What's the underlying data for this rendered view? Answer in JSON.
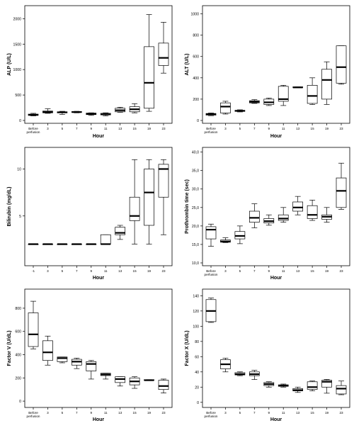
{
  "chart_data": [
    {
      "type": "box",
      "ylabel": "ALP (U/L)",
      "xlabel": "Hour",
      "ylim": [
        0,
        2200
      ],
      "yticks": [
        0,
        500,
        1000,
        1500,
        2000
      ],
      "categories": [
        [
          "Before",
          "perfusion"
        ],
        [
          "3"
        ],
        [
          "5"
        ],
        [
          "7"
        ],
        [
          "9"
        ],
        [
          "11"
        ],
        [
          "13"
        ],
        [
          "15"
        ],
        [
          "19"
        ],
        [
          "23"
        ]
      ],
      "boxes": [
        {
          "min": 90,
          "q1": 100,
          "median": 110,
          "q3": 125,
          "max": 140
        },
        {
          "min": 140,
          "q1": 150,
          "median": 165,
          "q3": 185,
          "max": 230
        },
        {
          "min": 120,
          "q1": 150,
          "median": 160,
          "q3": 170,
          "max": 180
        },
        {
          "min": 150,
          "q1": 160,
          "median": 165,
          "q3": 175,
          "max": 180
        },
        {
          "min": 100,
          "q1": 115,
          "median": 130,
          "q3": 145,
          "max": 150
        },
        {
          "min": 90,
          "q1": 110,
          "median": 120,
          "q3": 140,
          "max": 150
        },
        {
          "min": 160,
          "q1": 170,
          "median": 200,
          "q3": 240,
          "max": 260
        },
        {
          "min": 150,
          "q1": 170,
          "median": 220,
          "q3": 270,
          "max": 330
        },
        {
          "min": 180,
          "q1": 240,
          "median": 740,
          "q3": 1450,
          "max": 2080
        },
        {
          "min": 930,
          "q1": 1080,
          "median": 1230,
          "q3": 1520,
          "max": 1930
        }
      ]
    },
    {
      "type": "box",
      "ylabel": "ALT (U/L)",
      "xlabel": "Hour",
      "ylim": [
        0,
        1050
      ],
      "yticks": [
        0,
        200,
        400,
        600,
        800,
        1000
      ],
      "categories": [
        [
          "Before",
          "perfusion"
        ],
        [
          "3"
        ],
        [
          "5"
        ],
        [
          "7"
        ],
        [
          "9"
        ],
        [
          "11"
        ],
        [
          "13"
        ],
        [
          "15"
        ],
        [
          "19"
        ],
        [
          "23"
        ]
      ],
      "boxes": [
        {
          "min": 45,
          "q1": 50,
          "median": 60,
          "q3": 65,
          "max": 70
        },
        {
          "min": 60,
          "q1": 70,
          "median": 130,
          "q3": 165,
          "max": 180
        },
        {
          "min": 80,
          "q1": 85,
          "median": 90,
          "q3": 95,
          "max": 100
        },
        {
          "min": 160,
          "q1": 165,
          "median": 175,
          "q3": 185,
          "max": 195
        },
        {
          "min": 140,
          "q1": 150,
          "median": 170,
          "q3": 200,
          "max": 210
        },
        {
          "min": 140,
          "q1": 180,
          "median": 200,
          "q3": 320,
          "max": 330
        },
        {
          "min": 310,
          "q1": 310,
          "median": 310,
          "q3": 315,
          "max": 315
        },
        {
          "min": 150,
          "q1": 160,
          "median": 230,
          "q3": 330,
          "max": 400
        },
        {
          "min": 150,
          "q1": 200,
          "median": 380,
          "q3": 480,
          "max": 550
        },
        {
          "min": 340,
          "q1": 350,
          "median": 500,
          "q3": 700,
          "max": 700
        }
      ]
    },
    {
      "type": "box",
      "ylabel": "Bilirubin (mg/dL)",
      "xlabel": "Hour",
      "ylim": [
        0,
        12
      ],
      "yticks": [
        5,
        10
      ],
      "categories": [
        [
          "-1"
        ],
        [
          "3"
        ],
        [
          "5"
        ],
        [
          "7"
        ],
        [
          "9"
        ],
        [
          "11"
        ],
        [
          "13"
        ],
        [
          "15"
        ],
        [
          "19"
        ],
        [
          "23"
        ]
      ],
      "boxes": [
        {
          "min": 2,
          "q1": 2,
          "median": 2,
          "q3": 2,
          "max": 2
        },
        {
          "min": 2,
          "q1": 2,
          "median": 2,
          "q3": 2,
          "max": 2
        },
        {
          "min": 2,
          "q1": 2,
          "median": 2,
          "q3": 2,
          "max": 2
        },
        {
          "min": 2,
          "q1": 2,
          "median": 2,
          "q3": 2,
          "max": 2
        },
        {
          "min": 2,
          "q1": 2,
          "median": 2,
          "q3": 2,
          "max": 2
        },
        {
          "min": 2,
          "q1": 2,
          "median": 2,
          "q3": 3,
          "max": 3
        },
        {
          "min": 2.5,
          "q1": 3,
          "median": 3.2,
          "q3": 3.8,
          "max": 4
        },
        {
          "min": 2,
          "q1": 4.5,
          "median": 5,
          "q3": 7,
          "max": 11
        },
        {
          "min": 2,
          "q1": 4,
          "median": 7.5,
          "q3": 10,
          "max": 11
        },
        {
          "min": 3,
          "q1": 7,
          "median": 10,
          "q3": 10.5,
          "max": 11
        }
      ]
    },
    {
      "type": "box",
      "ylabel": "Prothrombin time (sec)",
      "xlabel": "Hour",
      "ylim": [
        10,
        40.5
      ],
      "yticks": [
        10.0,
        15.0,
        20.0,
        25.0,
        30.0,
        35.0,
        40.0
      ],
      "ytick_labels": [
        "10,0",
        "15,0",
        "20,0",
        "25,0",
        "30,0",
        "35,0",
        "40,0"
      ],
      "categories": [
        [
          "Before",
          "perfusion"
        ],
        [
          "3"
        ],
        [
          "5"
        ],
        [
          "7"
        ],
        [
          "9"
        ],
        [
          "11"
        ],
        [
          "13"
        ],
        [
          "15"
        ],
        [
          "19"
        ],
        [
          "23"
        ]
      ],
      "boxes": [
        {
          "min": 14.5,
          "q1": 16.5,
          "median": 19,
          "q3": 19.8,
          "max": 20.5
        },
        {
          "min": 15.5,
          "q1": 15.6,
          "median": 15.8,
          "q3": 16.2,
          "max": 16.8
        },
        {
          "min": 15.2,
          "q1": 16.5,
          "median": 17.3,
          "q3": 18.5,
          "max": 20.0
        },
        {
          "min": 19.5,
          "q1": 21,
          "median": 22.2,
          "q3": 24,
          "max": 26
        },
        {
          "min": 20.2,
          "q1": 20.8,
          "median": 21.3,
          "q3": 22,
          "max": 23
        },
        {
          "min": 21,
          "q1": 21.5,
          "median": 22,
          "q3": 23,
          "max": 25
        },
        {
          "min": 23,
          "q1": 24,
          "median": 25,
          "q3": 26.5,
          "max": 28
        },
        {
          "min": 21.5,
          "q1": 22,
          "median": 23,
          "q3": 25.5,
          "max": 27
        },
        {
          "min": 21,
          "q1": 21.8,
          "median": 22.5,
          "q3": 23,
          "max": 25
        },
        {
          "min": 24.5,
          "q1": 25,
          "median": 29.5,
          "q3": 33,
          "max": 37
        }
      ]
    },
    {
      "type": "box",
      "ylabel": "Factor V (U/dL)",
      "xlabel": "Hour",
      "ylim": [
        -30,
        940
      ],
      "yticks": [
        0,
        200,
        400,
        600,
        800
      ],
      "categories": [
        [
          "Before",
          "perfusion"
        ],
        [
          "3"
        ],
        [
          "5"
        ],
        [
          "7"
        ],
        [
          "9"
        ],
        [
          "11"
        ],
        [
          "13"
        ],
        [
          "15"
        ],
        [
          "19"
        ],
        [
          "23"
        ]
      ],
      "boxes": [
        {
          "min": 450,
          "q1": 470,
          "median": 575,
          "q3": 760,
          "max": 860
        },
        {
          "min": 310,
          "q1": 350,
          "median": 420,
          "q3": 520,
          "max": 560
        },
        {
          "min": 330,
          "q1": 340,
          "median": 370,
          "q3": 380,
          "max": 380
        },
        {
          "min": 280,
          "q1": 310,
          "median": 340,
          "q3": 360,
          "max": 370
        },
        {
          "min": 190,
          "q1": 260,
          "median": 320,
          "q3": 340,
          "max": 350
        },
        {
          "min": 190,
          "q1": 220,
          "median": 230,
          "q3": 240,
          "max": 240
        },
        {
          "min": 130,
          "q1": 160,
          "median": 190,
          "q3": 210,
          "max": 210
        },
        {
          "min": 110,
          "q1": 140,
          "median": 170,
          "q3": 200,
          "max": 210
        },
        {
          "min": 180,
          "q1": 180,
          "median": 180,
          "q3": 185,
          "max": 185
        },
        {
          "min": 70,
          "q1": 100,
          "median": 130,
          "q3": 180,
          "max": 190
        }
      ]
    },
    {
      "type": "box",
      "ylabel": "Factor X (U/dL)",
      "xlabel": "Hour",
      "ylim": [
        -3,
        145
      ],
      "yticks": [
        0,
        20,
        40,
        60,
        80,
        100,
        120,
        140
      ],
      "categories": [
        [
          "Before",
          "perfusion"
        ],
        [
          "3"
        ],
        [
          "5"
        ],
        [
          "7"
        ],
        [
          "9"
        ],
        [
          "11"
        ],
        [
          "13"
        ],
        [
          "15"
        ],
        [
          "19"
        ],
        [
          "23"
        ]
      ],
      "boxes": [
        {
          "min": 105,
          "q1": 106,
          "median": 120,
          "q3": 135,
          "max": 137
        },
        {
          "min": 40,
          "q1": 44,
          "median": 50,
          "q3": 56,
          "max": 58
        },
        {
          "min": 35,
          "q1": 36,
          "median": 37,
          "q3": 39,
          "max": 40
        },
        {
          "min": 30,
          "q1": 35,
          "median": 37,
          "q3": 40,
          "max": 42
        },
        {
          "min": 20,
          "q1": 22,
          "median": 24,
          "q3": 26,
          "max": 27
        },
        {
          "min": 20,
          "q1": 21,
          "median": 22,
          "q3": 23,
          "max": 24
        },
        {
          "min": 13,
          "q1": 15,
          "median": 16,
          "q3": 18,
          "max": 20
        },
        {
          "min": 15,
          "q1": 17,
          "median": 20,
          "q3": 27,
          "max": 28
        },
        {
          "min": 12,
          "q1": 20,
          "median": 27,
          "q3": 29,
          "max": 30
        },
        {
          "min": 10,
          "q1": 11,
          "median": 18,
          "q3": 22,
          "max": 28
        }
      ]
    }
  ]
}
